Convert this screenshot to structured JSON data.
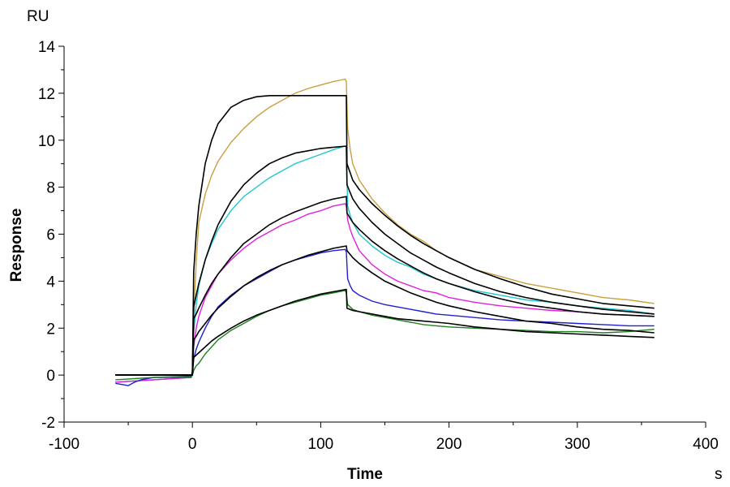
{
  "chart_data": {
    "type": "line",
    "title": "",
    "xlabel": "Time",
    "ylabel": "Response",
    "x_unit": "s",
    "y_unit": "RU",
    "xlim": [
      -100,
      400
    ],
    "ylim": [
      -2,
      14
    ],
    "x_ticks": [
      -100,
      0,
      100,
      200,
      300,
      400
    ],
    "y_ticks": [
      -2,
      0,
      2,
      4,
      6,
      8,
      10,
      12,
      14
    ],
    "x_tick_labels": [
      "-100",
      "0",
      "100",
      "200",
      "300",
      "400"
    ],
    "y_tick_labels": [
      "-2",
      "0",
      "2",
      "4",
      "6",
      "8",
      "10",
      "12",
      "14"
    ],
    "grid": false,
    "legend": "none",
    "series": [
      {
        "color": "#c8a040",
        "kind": "measured",
        "x": [
          -60,
          -30,
          -1,
          0,
          1,
          3,
          5,
          10,
          15,
          20,
          30,
          40,
          50,
          60,
          70,
          80,
          90,
          100,
          110,
          119,
          120,
          121,
          123,
          125,
          130,
          140,
          150,
          160,
          170,
          180,
          190,
          200,
          220,
          240,
          260,
          280,
          300,
          320,
          340,
          360
        ],
        "y": [
          -0.3,
          -0.2,
          -0.1,
          0.3,
          2.5,
          4.8,
          6.5,
          7.7,
          8.5,
          9.1,
          9.9,
          10.5,
          11.0,
          11.4,
          11.7,
          12.0,
          12.2,
          12.35,
          12.5,
          12.6,
          12.5,
          10.5,
          9.6,
          9.0,
          8.3,
          7.5,
          6.9,
          6.4,
          6.0,
          5.7,
          5.3,
          5.0,
          4.5,
          4.2,
          3.9,
          3.7,
          3.5,
          3.3,
          3.2,
          3.05
        ]
      },
      {
        "color": "#20c8d0",
        "kind": "measured",
        "x": [
          -60,
          -30,
          -1,
          0,
          1,
          3,
          5,
          10,
          15,
          20,
          30,
          40,
          50,
          60,
          70,
          80,
          90,
          100,
          110,
          119,
          120,
          121,
          123,
          125,
          130,
          140,
          150,
          160,
          170,
          180,
          190,
          200,
          220,
          240,
          260,
          280,
          300,
          320,
          340,
          360
        ],
        "y": [
          -0.3,
          -0.2,
          -0.1,
          0.2,
          1.8,
          3.0,
          3.8,
          4.9,
          5.6,
          6.2,
          7.0,
          7.6,
          8.0,
          8.4,
          8.7,
          9.0,
          9.2,
          9.4,
          9.6,
          9.75,
          9.7,
          7.2,
          6.8,
          6.5,
          6.0,
          5.5,
          5.1,
          4.8,
          4.6,
          4.3,
          4.1,
          3.9,
          3.6,
          3.4,
          3.2,
          3.1,
          2.95,
          2.85,
          2.75,
          2.6
        ]
      },
      {
        "color": "#e020e0",
        "kind": "measured",
        "x": [
          -60,
          -30,
          -1,
          0,
          1,
          3,
          5,
          10,
          15,
          20,
          30,
          40,
          50,
          60,
          70,
          80,
          90,
          100,
          110,
          119,
          120,
          121,
          123,
          125,
          130,
          140,
          150,
          160,
          170,
          180,
          190,
          200,
          220,
          240,
          260,
          280,
          300,
          320,
          340,
          360
        ],
        "y": [
          -0.3,
          -0.2,
          -0.1,
          0.15,
          1.2,
          2.0,
          2.5,
          3.3,
          3.8,
          4.3,
          4.9,
          5.4,
          5.8,
          6.1,
          6.4,
          6.6,
          6.85,
          7.0,
          7.2,
          7.3,
          7.2,
          6.6,
          6.2,
          5.9,
          5.3,
          4.7,
          4.3,
          4.0,
          3.8,
          3.6,
          3.5,
          3.3,
          3.1,
          2.95,
          2.85,
          2.75,
          2.7,
          2.6,
          2.55,
          2.5
        ]
      },
      {
        "color": "#2020d0",
        "kind": "measured",
        "x": [
          -60,
          -55,
          -50,
          -45,
          -40,
          -30,
          -1,
          0,
          1,
          3,
          5,
          10,
          15,
          20,
          30,
          40,
          50,
          60,
          70,
          80,
          90,
          100,
          110,
          119,
          120,
          121,
          123,
          125,
          130,
          140,
          150,
          160,
          170,
          180,
          190,
          200,
          220,
          240,
          260,
          280,
          300,
          320,
          340,
          360
        ],
        "y": [
          -0.35,
          -0.4,
          -0.45,
          -0.3,
          -0.2,
          -0.1,
          -0.05,
          0.1,
          0.7,
          1.1,
          1.4,
          2.0,
          2.5,
          2.9,
          3.4,
          3.8,
          4.1,
          4.4,
          4.7,
          4.9,
          5.05,
          5.2,
          5.3,
          5.35,
          5.25,
          4.1,
          3.8,
          3.6,
          3.4,
          3.15,
          3.0,
          2.9,
          2.8,
          2.7,
          2.6,
          2.55,
          2.45,
          2.35,
          2.3,
          2.25,
          2.2,
          2.15,
          2.1,
          2.1
        ]
      },
      {
        "color": "#208020",
        "kind": "measured",
        "x": [
          -60,
          -30,
          -1,
          0,
          1,
          3,
          5,
          10,
          15,
          20,
          30,
          40,
          50,
          60,
          70,
          80,
          90,
          100,
          110,
          119,
          120,
          121,
          123,
          125,
          130,
          140,
          150,
          160,
          170,
          180,
          190,
          200,
          220,
          240,
          260,
          280,
          300,
          320,
          340,
          360
        ],
        "y": [
          -0.2,
          -0.1,
          -0.1,
          0.0,
          0.2,
          0.4,
          0.5,
          0.9,
          1.2,
          1.5,
          1.9,
          2.2,
          2.5,
          2.75,
          2.95,
          3.1,
          3.25,
          3.4,
          3.5,
          3.6,
          3.5,
          3.0,
          2.9,
          2.8,
          2.7,
          2.55,
          2.45,
          2.35,
          2.25,
          2.15,
          2.1,
          2.05,
          2.0,
          1.95,
          1.9,
          1.85,
          1.85,
          1.8,
          1.85,
          1.95
        ]
      },
      {
        "color": "#000000",
        "kind": "fit",
        "x": [
          -60,
          -1,
          0,
          1,
          3,
          5,
          10,
          15,
          20,
          30,
          40,
          50,
          60,
          70,
          80,
          90,
          100,
          110,
          120,
          120.5,
          125,
          130,
          140,
          150,
          160,
          170,
          180,
          190,
          200,
          220,
          240,
          260,
          280,
          300,
          320,
          340,
          360
        ],
        "y": [
          0.0,
          0.0,
          0.0,
          4.4,
          6.0,
          7.2,
          9.0,
          10.0,
          10.7,
          11.4,
          11.7,
          11.85,
          11.9,
          11.9,
          11.9,
          11.9,
          11.9,
          11.9,
          11.9,
          9.0,
          8.3,
          7.9,
          7.3,
          6.8,
          6.35,
          5.95,
          5.6,
          5.3,
          5.0,
          4.5,
          4.1,
          3.75,
          3.45,
          3.25,
          3.05,
          2.95,
          2.85
        ]
      },
      {
        "color": "#000000",
        "kind": "fit",
        "x": [
          -60,
          -1,
          0,
          1,
          3,
          5,
          10,
          15,
          20,
          30,
          40,
          50,
          60,
          70,
          80,
          90,
          100,
          110,
          120,
          120.5,
          125,
          130,
          140,
          150,
          160,
          170,
          180,
          190,
          200,
          220,
          240,
          260,
          280,
          300,
          320,
          340,
          360
        ],
        "y": [
          0.0,
          0.0,
          0.0,
          2.9,
          3.4,
          3.9,
          4.9,
          5.7,
          6.4,
          7.4,
          8.1,
          8.6,
          9.0,
          9.25,
          9.45,
          9.55,
          9.65,
          9.7,
          9.75,
          8.1,
          7.5,
          7.1,
          6.5,
          6.0,
          5.6,
          5.2,
          4.9,
          4.6,
          4.35,
          3.9,
          3.55,
          3.3,
          3.1,
          2.95,
          2.8,
          2.7,
          2.6
        ]
      },
      {
        "color": "#000000",
        "kind": "fit",
        "x": [
          -60,
          -1,
          0,
          1,
          3,
          5,
          10,
          15,
          20,
          30,
          40,
          50,
          60,
          70,
          80,
          90,
          100,
          110,
          120,
          120.5,
          125,
          130,
          140,
          150,
          160,
          170,
          180,
          190,
          200,
          220,
          240,
          260,
          280,
          300,
          320,
          340,
          360
        ],
        "y": [
          0.0,
          0.0,
          0.0,
          2.4,
          2.6,
          2.85,
          3.4,
          3.9,
          4.3,
          5.0,
          5.6,
          6.0,
          6.4,
          6.7,
          6.95,
          7.15,
          7.35,
          7.5,
          7.6,
          6.9,
          6.5,
          6.2,
          5.7,
          5.3,
          4.95,
          4.65,
          4.35,
          4.1,
          3.9,
          3.55,
          3.25,
          3.0,
          2.85,
          2.7,
          2.6,
          2.55,
          2.5
        ]
      },
      {
        "color": "#000000",
        "kind": "fit",
        "x": [
          -60,
          -1,
          0,
          1,
          3,
          5,
          10,
          15,
          20,
          30,
          40,
          50,
          60,
          70,
          80,
          90,
          100,
          110,
          120,
          120.5,
          125,
          130,
          140,
          150,
          160,
          170,
          180,
          190,
          200,
          220,
          240,
          260,
          280,
          300,
          320,
          340,
          360
        ],
        "y": [
          0.0,
          0.0,
          0.0,
          1.5,
          1.65,
          1.85,
          2.2,
          2.55,
          2.85,
          3.35,
          3.8,
          4.15,
          4.45,
          4.7,
          4.9,
          5.1,
          5.25,
          5.4,
          5.5,
          5.3,
          5.0,
          4.75,
          4.35,
          4.0,
          3.75,
          3.5,
          3.3,
          3.1,
          2.95,
          2.7,
          2.5,
          2.3,
          2.2,
          2.05,
          1.95,
          1.9,
          1.8
        ]
      },
      {
        "color": "#000000",
        "kind": "fit",
        "x": [
          -60,
          -1,
          0,
          1,
          3,
          5,
          10,
          15,
          20,
          30,
          40,
          50,
          60,
          70,
          80,
          90,
          100,
          110,
          120,
          120.5,
          125,
          130,
          140,
          150,
          160,
          170,
          180,
          190,
          200,
          220,
          240,
          260,
          280,
          300,
          320,
          340,
          360
        ],
        "y": [
          0.0,
          0.0,
          0.0,
          0.75,
          0.85,
          0.95,
          1.2,
          1.45,
          1.65,
          2.0,
          2.3,
          2.55,
          2.75,
          2.95,
          3.15,
          3.3,
          3.45,
          3.55,
          3.65,
          2.85,
          2.75,
          2.7,
          2.6,
          2.5,
          2.4,
          2.35,
          2.3,
          2.25,
          2.2,
          2.05,
          1.95,
          1.85,
          1.8,
          1.75,
          1.7,
          1.65,
          1.6
        ]
      }
    ]
  }
}
